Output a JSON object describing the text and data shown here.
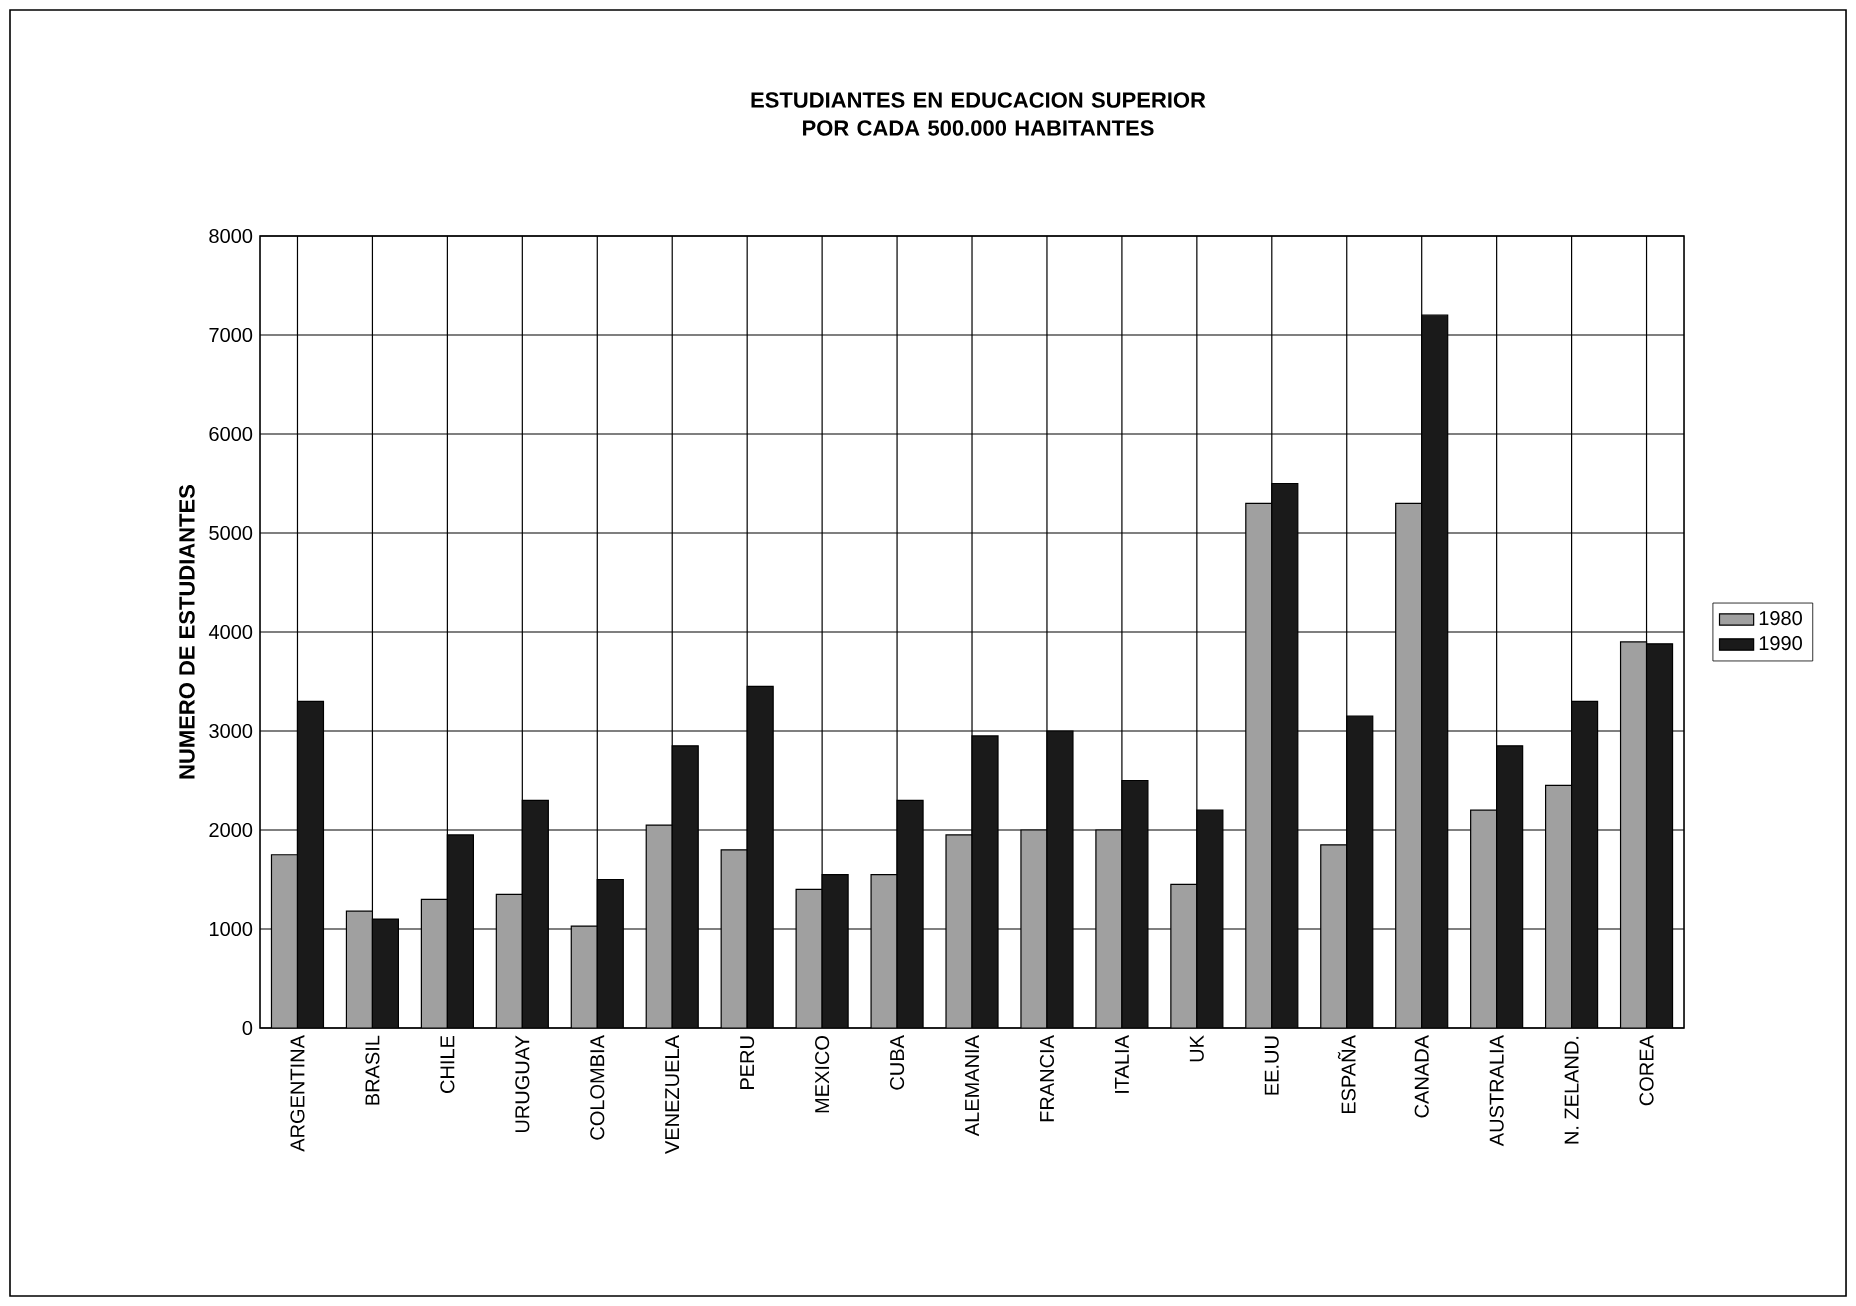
{
  "chart_data": {
    "type": "bar",
    "title": "ESTUDIANTES EN EDUCACION SUPERIOR POR CADA 500.000 HABITANTES",
    "ylabel": "NUMERO DE ESTUDIANTES",
    "categories": [
      "ARGENTINA",
      "BRASIL",
      "CHILE",
      "URUGUAY",
      "COLOMBIA",
      "VENEZUELA",
      "PERU",
      "MEXICO",
      "CUBA",
      "ALEMANIA",
      "FRANCIA",
      "ITALIA",
      "UK",
      "EE.UU",
      "ESPAÑA",
      "CANADA",
      "AUSTRALIA",
      "N. ZELAND.",
      "COREA"
    ],
    "series": [
      {
        "name": "1980",
        "color": "#a0a0a0",
        "values": [
          1750,
          1180,
          1300,
          1350,
          1030,
          2050,
          1800,
          1400,
          1550,
          1950,
          2000,
          2000,
          1450,
          5300,
          1850,
          5300,
          2200,
          2450,
          3900
        ]
      },
      {
        "name": "1990",
        "color": "#1a1a1a",
        "values": [
          3300,
          1100,
          1950,
          2300,
          1500,
          2850,
          3450,
          1550,
          2300,
          2950,
          3000,
          2500,
          2200,
          5500,
          3150,
          7200,
          2850,
          3300,
          3880
        ]
      }
    ],
    "ylim": [
      0,
      8000
    ],
    "yticks": [
      0,
      1000,
      2000,
      3000,
      4000,
      5000,
      6000,
      7000,
      8000
    ],
    "grid": true,
    "legend": "right"
  }
}
